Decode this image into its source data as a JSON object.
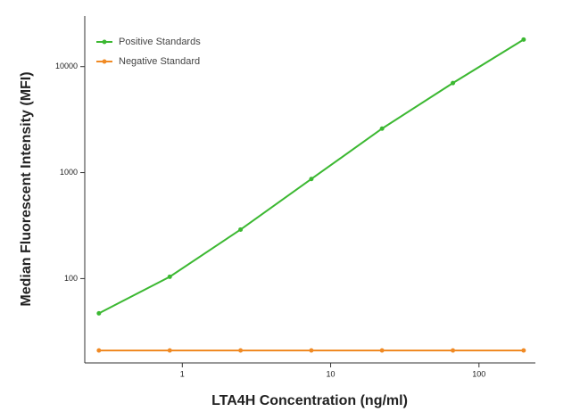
{
  "chart_data": {
    "type": "scatter",
    "xlabel": "LTA4H Concentration (ng/ml)",
    "ylabel": "Median  Fluorescent Intensity  (MFI)",
    "x": [
      0.274,
      0.823,
      2.47,
      7.41,
      22.2,
      66.7,
      200
    ],
    "series": [
      {
        "name": "Positive Standards",
        "color": "#3cb832",
        "values": [
          47,
          104,
          290,
          870,
          2600,
          7000,
          18000
        ]
      },
      {
        "name": "Negative Standard",
        "color": "#f08a24",
        "values": [
          21,
          21,
          21,
          21,
          21,
          21,
          21
        ]
      }
    ],
    "xscale": "log",
    "yscale": "log",
    "xlim": [
      0.22,
      240
    ],
    "ylim": [
      16,
      30000
    ],
    "xticks": [
      1,
      10,
      100
    ],
    "yticks": [
      100,
      1000,
      10000
    ],
    "legend": "upper left"
  }
}
